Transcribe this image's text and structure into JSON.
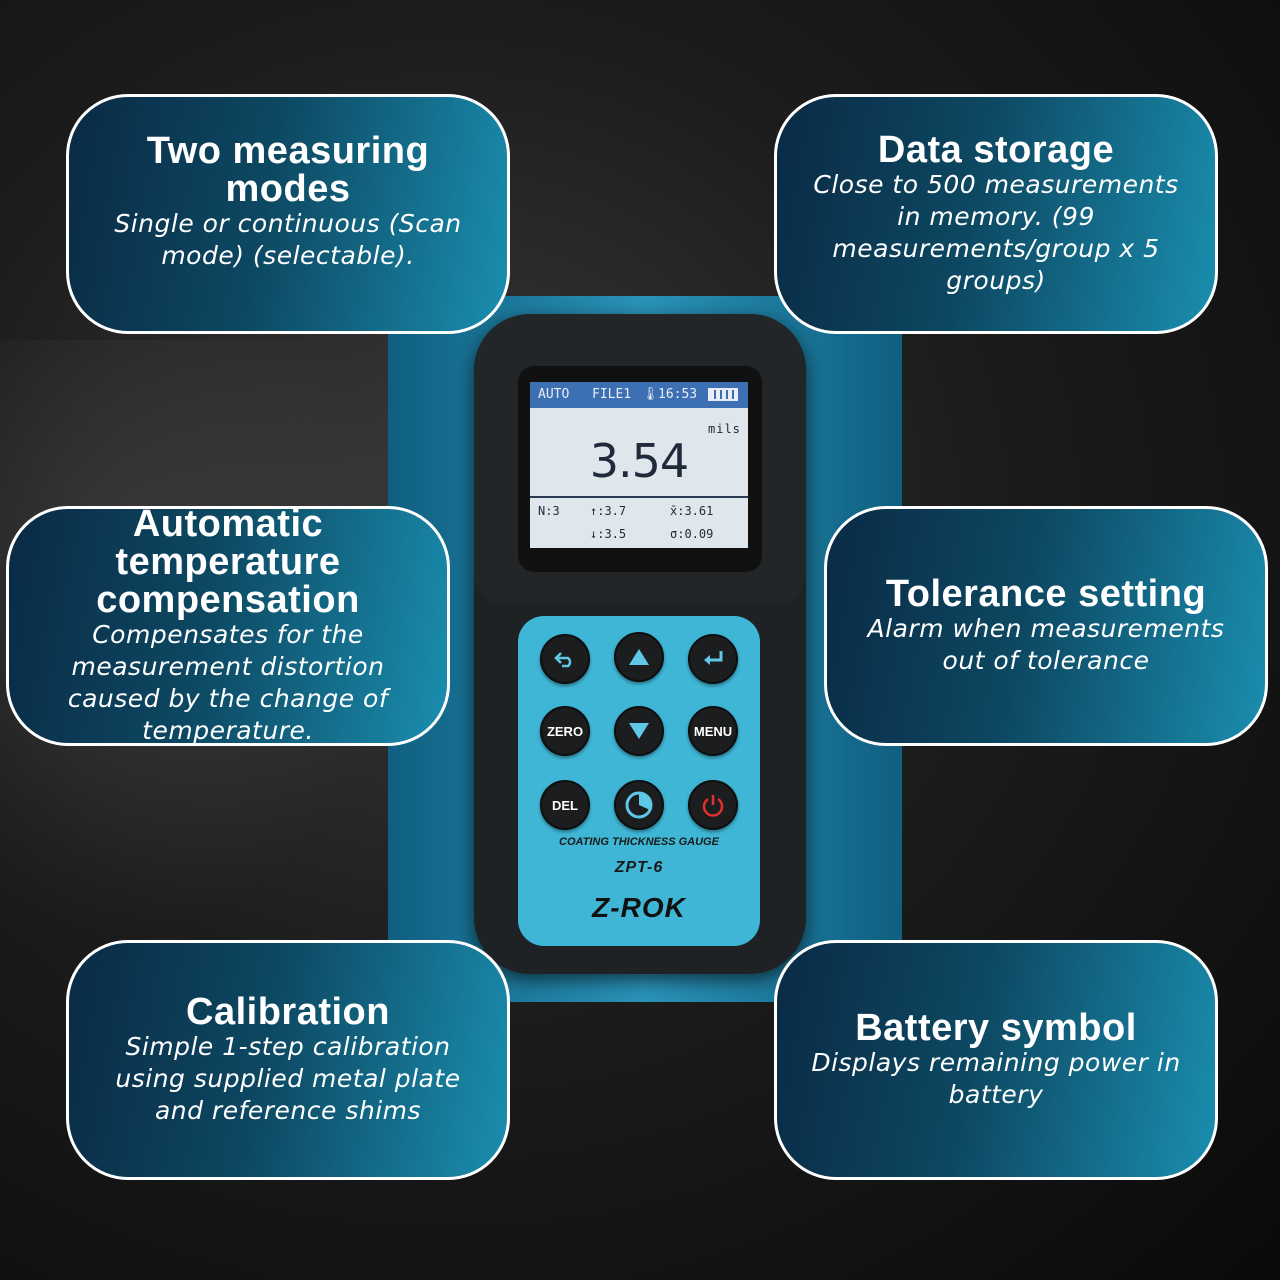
{
  "features": {
    "modes": {
      "title": "Two measuring modes",
      "body": "Single or continuous (Scan mode) (selectable)."
    },
    "storage": {
      "title": "Data storage",
      "body": "Close to 500 measurements in memory. (99 measurements/group x 5 groups)"
    },
    "temperature": {
      "title": "Automatic temperature compensation",
      "body": "Compensates for the measurement distortion caused by the change of temperature."
    },
    "tolerance": {
      "title": "Tolerance setting",
      "body": "Alarm when measurements out of tolerance"
    },
    "calibration": {
      "title": "Calibration",
      "body": "Simple 1-step calibration using supplied metal plate and reference shims"
    },
    "battery": {
      "title": "Battery symbol",
      "body": "Displays remaining power in battery"
    }
  },
  "device": {
    "screen": {
      "mode": "AUTO",
      "file": "FILE1",
      "time": "16:53",
      "unit": "mils",
      "reading": "3.54",
      "count": "N:3",
      "max": "↑:3.7",
      "min": "↓:3.5",
      "mean": "x̄:3.61",
      "stddev": "σ:0.09"
    },
    "keys": {
      "back": "back-arrow-icon",
      "up": "up-arrow-icon",
      "enter": "enter-icon",
      "zero": "ZERO",
      "down": "down-arrow-icon",
      "menu": "MENU",
      "del": "DEL",
      "stats": "pie-chart-icon",
      "power": "power-icon"
    },
    "label": "COATING THICKNESS GAUGE",
    "model": "ZPT-6",
    "brand": "Z-ROK"
  },
  "colors": {
    "card_border": "#ffffff",
    "keypad": "#3fb6d5",
    "power_symbol": "#e0302a"
  }
}
